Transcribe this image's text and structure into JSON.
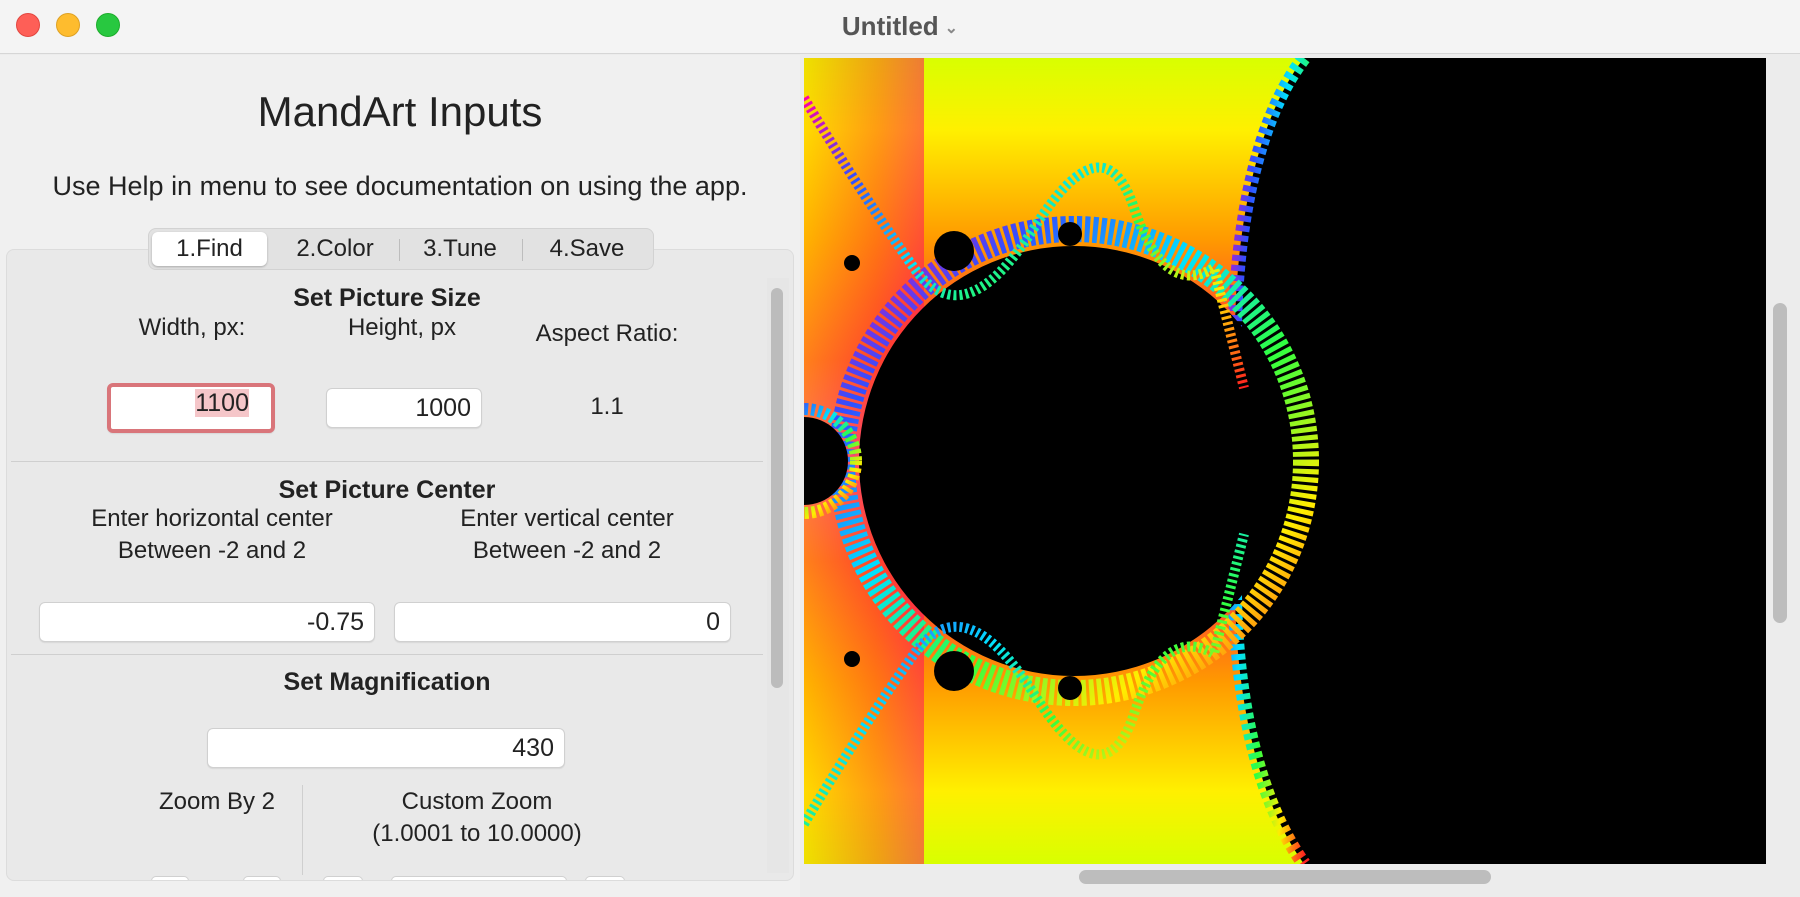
{
  "window": {
    "title": "Untitled"
  },
  "inputs": {
    "heading": "MandArt Inputs",
    "help_text": "Use Help in menu to see documentation on using the app."
  },
  "tabs": [
    {
      "label": "1.Find",
      "active": true
    },
    {
      "label": "2.Color",
      "active": false
    },
    {
      "label": "3.Tune",
      "active": false
    },
    {
      "label": "4.Save",
      "active": false
    }
  ],
  "picture_size": {
    "title": "Set Picture Size",
    "width_label": "Width, px:",
    "height_label": "Height, px",
    "aspect_label": "Aspect Ratio:",
    "width_value": "1100",
    "height_value": "1000",
    "aspect_value": "1.1"
  },
  "picture_center": {
    "title": "Set Picture Center",
    "horizontal_label_1": "Enter horizontal center",
    "horizontal_label_2": "Between -2 and 2",
    "vertical_label_1": "Enter vertical center",
    "vertical_label_2": "Between -2 and 2",
    "horizontal_value": "-0.75",
    "vertical_value": "0"
  },
  "magnification": {
    "title": "Set Magnification",
    "value": "430",
    "zoom_by_2_label": "Zoom By 2",
    "custom_zoom_label": "Custom Zoom",
    "custom_zoom_range": "(1.0001 to 10.0000)"
  },
  "colors": {
    "accent_focus": "#d9757a",
    "selection": "#f5c6c9",
    "fractal_inside": "#000000"
  }
}
